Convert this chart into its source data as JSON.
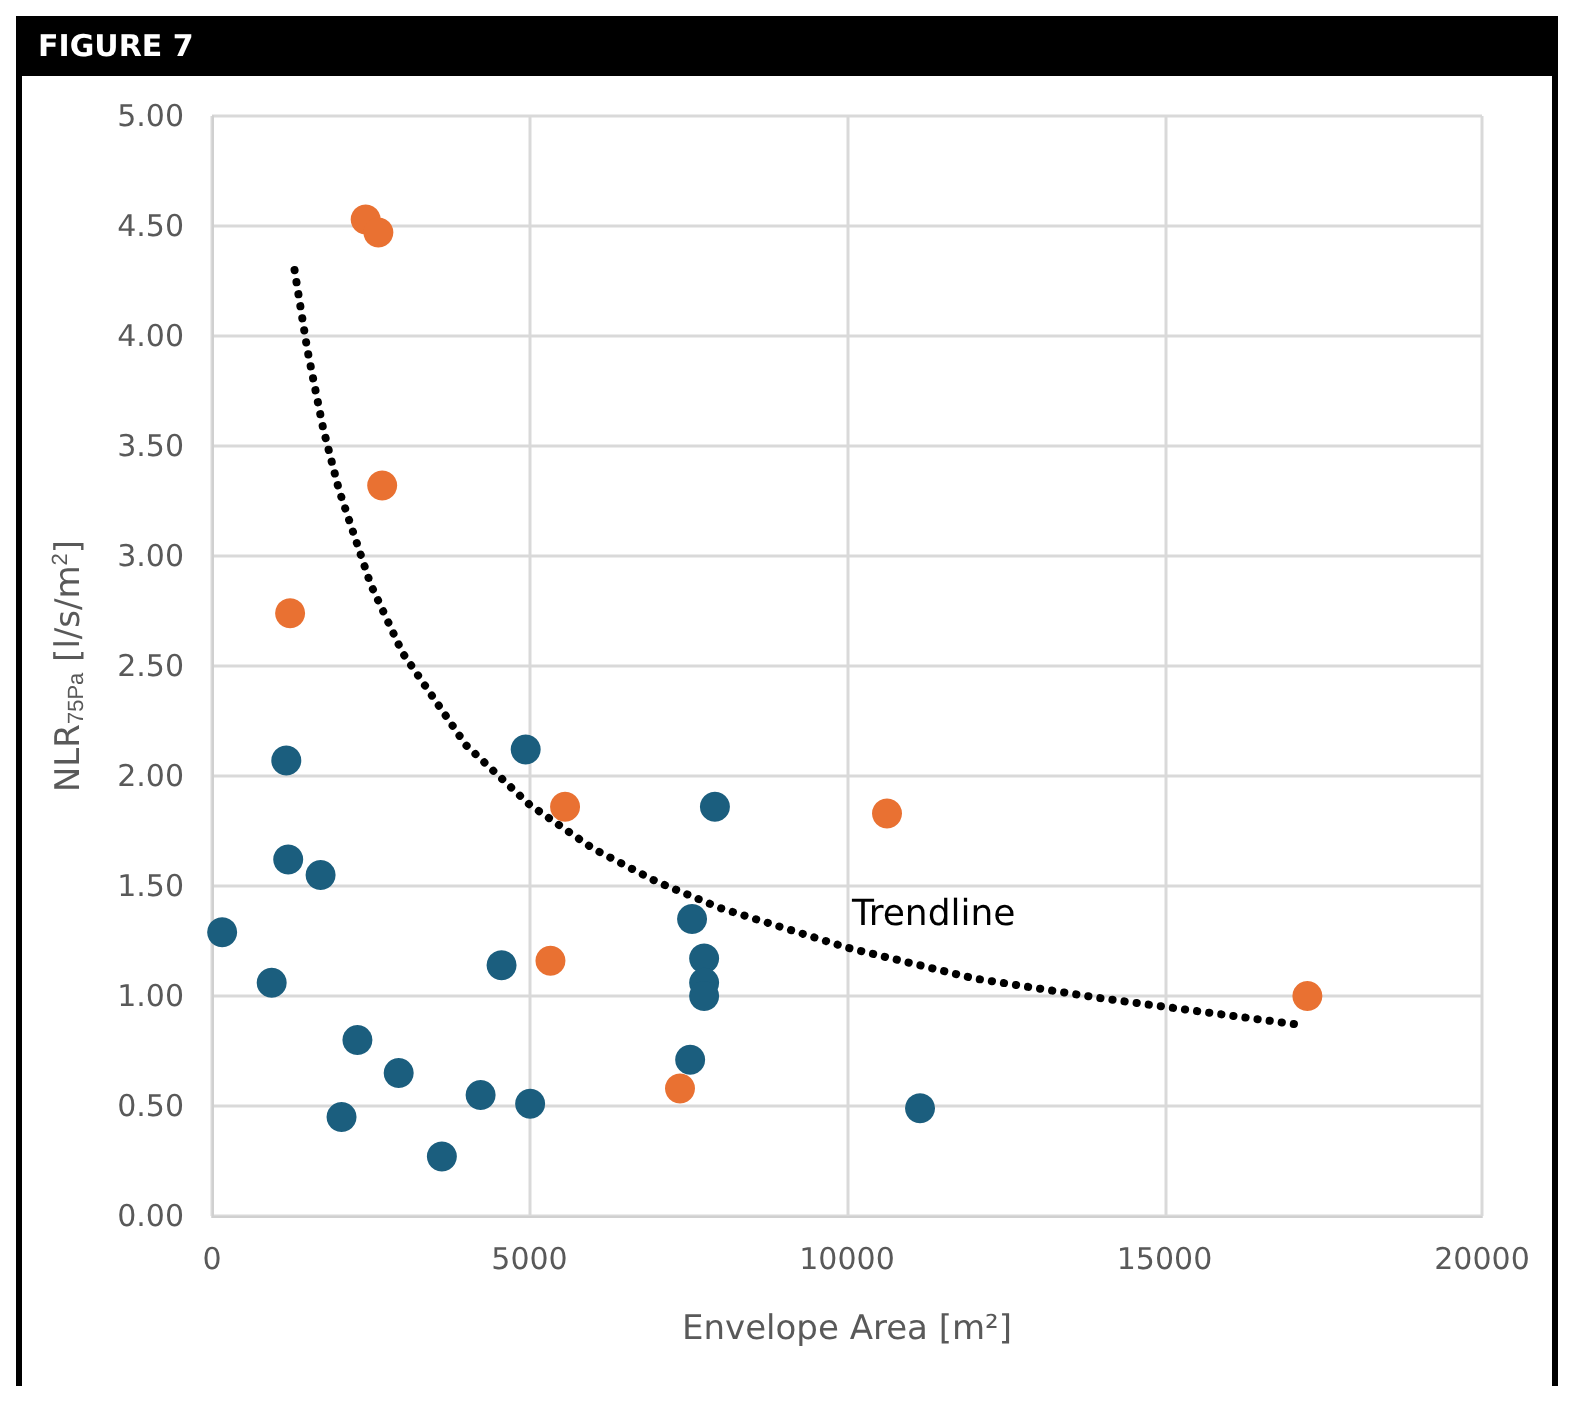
{
  "chart_data": {
    "type": "scatter",
    "title": "FIGURE 7",
    "xlabel": "Envelope Area [m²]",
    "ylabel": "NLR$_{75Pa}$ [l/s/m$^{2}$]",
    "xlim": [
      0,
      20000
    ],
    "xticks": [
      0,
      5000,
      10000,
      15000,
      20000
    ],
    "ylim": [
      0,
      5
    ],
    "yticks": [
      {
        "value": 0,
        "label": "0.00"
      },
      {
        "value": 0.5,
        "label": "0.50"
      },
      {
        "value": 1,
        "label": "1.00"
      },
      {
        "value": 1.5,
        "label": "1.50"
      },
      {
        "value": 2,
        "label": "2.00"
      },
      {
        "value": 2.5,
        "label": "2.50"
      },
      {
        "value": 3,
        "label": "3.00"
      },
      {
        "value": 3.5,
        "label": "3.50"
      },
      {
        "value": 4,
        "label": "4.00"
      },
      {
        "value": 4.5,
        "label": "4.50"
      },
      {
        "value": 5,
        "label": "5.00"
      }
    ],
    "grid": true,
    "marker": "circle",
    "series": [
      {
        "color": "#1b5e7e",
        "x": [
          160,
          940,
          1170,
          1200,
          1710,
          2290,
          2040,
          2940,
          3620,
          4230,
          4560,
          4940,
          5010,
          7530,
          7560,
          7750,
          7750,
          7750,
          7920,
          11150
        ],
        "values": [
          1.29,
          1.06,
          2.07,
          1.62,
          1.55,
          0.8,
          0.45,
          0.65,
          0.27,
          0.55,
          1.14,
          2.12,
          0.51,
          0.71,
          1.35,
          1.17,
          1.06,
          1.0,
          1.86,
          0.49
        ]
      },
      {
        "color": "#e97132",
        "x": [
          2420,
          2620,
          2680,
          1230,
          5560,
          5330,
          7370,
          10630,
          17250
        ],
        "values": [
          4.53,
          4.47,
          3.32,
          2.74,
          1.86,
          1.16,
          0.58,
          1.83,
          1.0
        ]
      },
      {
        "type": "line",
        "color": "#000000",
        "line_style": "dotted",
        "marker": "none",
        "x": [
          1300,
          1500,
          1750,
          2000,
          2500,
          3000,
          4000,
          5000,
          6000,
          7000,
          8000,
          10000,
          12000,
          14000,
          17100
        ],
        "values": [
          4.3,
          3.94,
          3.58,
          3.3,
          2.87,
          2.56,
          2.14,
          1.87,
          1.67,
          1.52,
          1.4,
          1.22,
          1.08,
          0.99,
          0.87
        ]
      }
    ],
    "annotations": [
      "Trendline"
    ]
  }
}
